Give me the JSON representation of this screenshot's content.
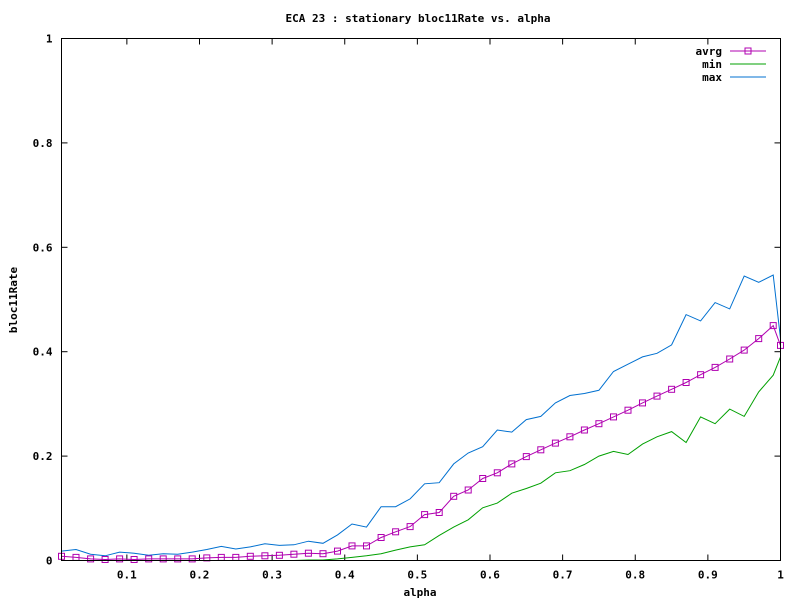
{
  "chart_data": {
    "type": "line",
    "title": "ECA 23 : stationary bloc11Rate vs. alpha",
    "xlabel": "alpha",
    "ylabel": "bloc11Rate",
    "xlim": [
      0.01,
      1.0
    ],
    "ylim": [
      0,
      1
    ],
    "x_ticks": [
      0.1,
      0.2,
      0.3,
      0.4,
      0.5,
      0.6,
      0.7,
      0.8,
      0.9,
      1
    ],
    "x_tick_labels": [
      "0.1",
      "0.2",
      "0.3",
      "0.4",
      "0.5",
      "0.6",
      "0.7",
      "0.8",
      "0.9",
      "1"
    ],
    "y_ticks": [
      0,
      0.2,
      0.4,
      0.6,
      0.8,
      1
    ],
    "y_tick_labels": [
      "0",
      "0.2",
      "0.4",
      "0.6",
      "0.8",
      "1"
    ],
    "grid": false,
    "legend_position": "top-right",
    "x": [
      0.01,
      0.03,
      0.05,
      0.07,
      0.09,
      0.11,
      0.13,
      0.15,
      0.17,
      0.19,
      0.21,
      0.23,
      0.25,
      0.27,
      0.29,
      0.31,
      0.33,
      0.35,
      0.37,
      0.39,
      0.41,
      0.43,
      0.45,
      0.47,
      0.49,
      0.51,
      0.53,
      0.55,
      0.57,
      0.59,
      0.61,
      0.63,
      0.65,
      0.67,
      0.69,
      0.71,
      0.73,
      0.75,
      0.77,
      0.79,
      0.81,
      0.83,
      0.85,
      0.87,
      0.89,
      0.91,
      0.93,
      0.95,
      0.97,
      0.99,
      1.0
    ],
    "series": [
      {
        "name": "avrg",
        "color": "#b000b0",
        "marker": "square",
        "values": [
          0.008,
          0.006,
          0.003,
          0.002,
          0.003,
          0.002,
          0.003,
          0.003,
          0.003,
          0.003,
          0.005,
          0.006,
          0.006,
          0.008,
          0.009,
          0.01,
          0.012,
          0.014,
          0.013,
          0.018,
          0.028,
          0.028,
          0.044,
          0.055,
          0.065,
          0.088,
          0.092,
          0.123,
          0.135,
          0.157,
          0.168,
          0.185,
          0.199,
          0.212,
          0.225,
          0.237,
          0.25,
          0.262,
          0.275,
          0.288,
          0.302,
          0.315,
          0.328,
          0.341,
          0.356,
          0.37,
          0.386,
          0.403,
          0.425,
          0.45,
          0.412
        ]
      },
      {
        "name": "min",
        "color": "#00a000",
        "marker": "none",
        "values": [
          0.0,
          0.0,
          0.0,
          0.0,
          0.0,
          0.0,
          0.0,
          0.0,
          0.0,
          0.0,
          0.0,
          0.0,
          0.0,
          0.0,
          0.0,
          0.0,
          0.0,
          0.001,
          0.001,
          0.003,
          0.006,
          0.009,
          0.013,
          0.02,
          0.026,
          0.03,
          0.048,
          0.064,
          0.078,
          0.101,
          0.11,
          0.129,
          0.138,
          0.148,
          0.168,
          0.172,
          0.184,
          0.2,
          0.209,
          0.203,
          0.223,
          0.237,
          0.247,
          0.226,
          0.275,
          0.262,
          0.29,
          0.276,
          0.323,
          0.355,
          0.39
        ]
      },
      {
        "name": "max",
        "color": "#0070d0",
        "marker": "none",
        "values": [
          0.018,
          0.021,
          0.012,
          0.009,
          0.016,
          0.014,
          0.01,
          0.013,
          0.012,
          0.016,
          0.021,
          0.027,
          0.022,
          0.026,
          0.032,
          0.029,
          0.03,
          0.037,
          0.033,
          0.049,
          0.07,
          0.064,
          0.103,
          0.103,
          0.118,
          0.147,
          0.149,
          0.185,
          0.206,
          0.218,
          0.25,
          0.246,
          0.27,
          0.276,
          0.302,
          0.316,
          0.32,
          0.326,
          0.362,
          0.376,
          0.39,
          0.397,
          0.413,
          0.471,
          0.459,
          0.494,
          0.482,
          0.545,
          0.533,
          0.547,
          0.425
        ]
      }
    ]
  }
}
